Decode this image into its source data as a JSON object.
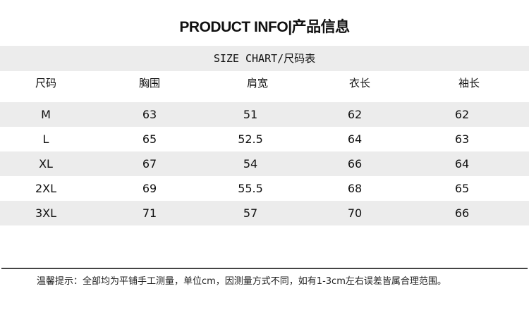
{
  "title": "PRODUCT INFO|产品信息",
  "banner": "SIZE CHART/尺码表",
  "table": {
    "headers": [
      "尺码",
      "胸围",
      "肩宽",
      "衣长",
      "袖长"
    ],
    "rows": [
      [
        "M",
        "63",
        "51",
        "62",
        "62"
      ],
      [
        "L",
        "65",
        "52.5",
        "64",
        "63"
      ],
      [
        "XL",
        "67",
        "54",
        "66",
        "64"
      ],
      [
        "2XL",
        "69",
        "55.5",
        "68",
        "65"
      ],
      [
        "3XL",
        "71",
        "57",
        "70",
        "66"
      ]
    ]
  },
  "note": "温馨提示：全部均为平铺手工测量，单位cm，因测量方式不同，如有1-3cm左右误差皆属合理范围。",
  "colors": {
    "stripe": "#ececec",
    "text": "#111111"
  }
}
